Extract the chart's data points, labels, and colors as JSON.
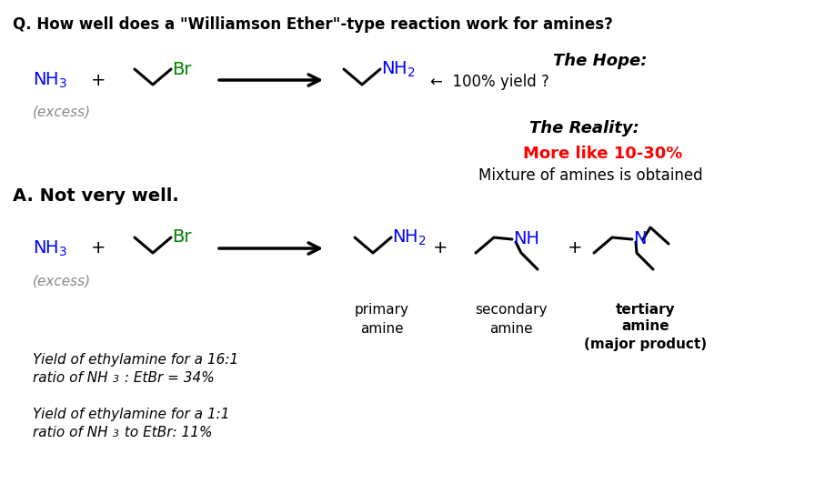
{
  "background": "#ffffff",
  "question": "Q. How well does a \"Williamson Ether\"-type reaction work for amines?",
  "answer_label": "A. Not very well.",
  "hope_label": "The Hope:",
  "reality_label": "The Reality:",
  "more_like": "More like 10-30%",
  "mixture": "Mixture of amines is obtained",
  "excess": "(excess)",
  "hundred_percent": "←  100% yield ?",
  "primary": "primary\namine",
  "secondary": "secondary\namine",
  "tertiary_line1": "tertiary",
  "tertiary_line2": "amine",
  "major": "(major product)",
  "yield1_line1": "Yield of ethylamine for a 16:1",
  "yield1_line2": "ratio of NH",
  "yield1_sub": "3",
  "yield1_line2b": " : EtBr = 34%",
  "yield2_line1": "Yield of ethylamine for a 1:1",
  "yield2_line2": "ratio of NH",
  "yield2_sub": "3",
  "yield2_line2b": " to EtBr: 11%",
  "blue": "#0000ff",
  "green": "#008000",
  "red": "#ff0000",
  "black": "#000000",
  "gray": "#888888"
}
